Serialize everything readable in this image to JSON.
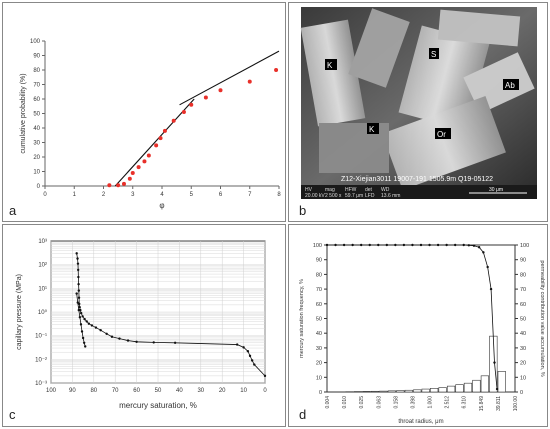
{
  "panel_letters": {
    "a": "a",
    "b": "b",
    "c": "c",
    "d": "d"
  },
  "sem_image": {
    "mineral_labels": [
      "K",
      "S",
      "Ab",
      "K",
      "Or"
    ],
    "caption_line": "Z12-Xiejian3011   19007-191   1505.9m   Q19-05122",
    "info_bar": [
      "HV",
      "mag",
      "HFW",
      "det",
      "WD",
      "20.00 kV",
      "2 500 x",
      "59.7 μm",
      "LFD",
      "13.6 mm"
    ],
    "scale_bar_label": "30 μm"
  },
  "chart_data": [
    {
      "panel": "a",
      "type": "scatter",
      "xlabel": "φ",
      "ylabel": "cumulative probability (%)",
      "xlim": [
        0,
        8
      ],
      "ylim": [
        0,
        100
      ],
      "x_ticks": [
        "0",
        "1",
        "2",
        "3",
        "4",
        "5",
        "6",
        "7",
        "8"
      ],
      "y_ticks": [
        "0",
        "10",
        "20",
        "30",
        "40",
        "50",
        "60",
        "70",
        "80",
        "90",
        "100"
      ],
      "points_color": "#e8302a",
      "series": [
        {
          "x": [
            2.2,
            2.5,
            2.7,
            2.9,
            3.0,
            3.2,
            3.4,
            3.55,
            3.8,
            3.95,
            4.1,
            4.4,
            4.75,
            5.0,
            5.5,
            6.0,
            7.0,
            7.9
          ],
          "y": [
            0.5,
            0.5,
            1.5,
            5,
            9,
            13,
            17,
            21,
            28,
            33,
            38,
            45,
            51,
            56,
            61,
            66,
            72,
            80
          ]
        }
      ],
      "fit_lines": [
        {
          "x": [
            2.4,
            5.1
          ],
          "y": [
            0,
            60
          ]
        },
        {
          "x": [
            4.6,
            8.0
          ],
          "y": [
            56,
            93
          ]
        }
      ]
    },
    {
      "panel": "c",
      "type": "line",
      "xlabel": "mercury saturation, %",
      "ylabel": "capillary pressure (MPa)",
      "x_reversed": true,
      "xlim": [
        100,
        0
      ],
      "y_scale": "log",
      "ylim": [
        0.001,
        1000
      ],
      "x_ticks": [
        "100",
        "90",
        "80",
        "70",
        "60",
        "50",
        "40",
        "30",
        "20",
        "10",
        "0"
      ],
      "y_ticks": [
        "10⁻³",
        "10⁻²",
        "10⁻¹",
        "10⁰",
        "10¹",
        "10²",
        "10³"
      ],
      "series": [
        {
          "x": [
            88,
            87.6,
            87.4,
            87.3,
            87.2,
            87.1,
            87,
            86.9,
            86.8,
            86.6,
            86.3,
            85.9,
            85.2,
            84.3,
            83.3,
            82.3,
            80.9,
            79,
            76.8,
            74,
            71.5,
            68,
            64,
            60,
            52,
            42,
            13,
            10,
            8,
            7,
            6,
            5,
            0
          ],
          "y": [
            300,
            180,
            110,
            60,
            30,
            15,
            8,
            4,
            2.2,
            1.6,
            1.2,
            0.9,
            0.65,
            0.5,
            0.4,
            0.32,
            0.27,
            0.22,
            0.17,
            0.12,
            0.09,
            0.075,
            0.062,
            0.055,
            0.052,
            0.05,
            0.042,
            0.032,
            0.022,
            0.014,
            0.009,
            0.006,
            0.002
          ]
        },
        {
          "x": [
            88,
            87.5,
            87,
            86.5,
            86,
            85.5,
            85,
            84.5,
            84
          ],
          "y": [
            6,
            2.5,
            1.2,
            0.6,
            0.3,
            0.15,
            0.08,
            0.05,
            0.035
          ]
        }
      ]
    },
    {
      "panel": "d",
      "type": "bar",
      "xlabel": "throat radius, μm",
      "ylabel_left": "mercury saturation frequency, %",
      "ylabel_right": "permeability contribution value accumulation, %",
      "ylim": [
        0,
        100
      ],
      "x_tick_labels": [
        "0.004",
        "0.010",
        "0.025",
        "0.063",
        "0.158",
        "0.398",
        "1.000",
        "2.512",
        "6.310",
        "15.849",
        "39.811",
        "100.00"
      ],
      "y_ticks_left": [
        "0",
        "10",
        "20",
        "30",
        "40",
        "50",
        "60",
        "70",
        "80",
        "90",
        "100"
      ],
      "y_ticks_right": [
        "0",
        "10",
        "20",
        "30",
        "40",
        "50",
        "60",
        "70",
        "80",
        "90",
        "100"
      ],
      "bars": [
        0.2,
        0.3,
        0.4,
        0.5,
        0.6,
        0.8,
        1.0,
        1.2,
        1.5,
        2.0,
        2.5,
        3.0,
        4.0,
        5.0,
        6.0,
        8.0,
        11.0,
        38.0,
        14.0
      ],
      "cumulative": [
        [
          0.0,
          100
        ],
        [
          0.5,
          100
        ],
        [
          1.0,
          100
        ],
        [
          1.5,
          100
        ],
        [
          2.0,
          100
        ],
        [
          2.5,
          100
        ],
        [
          3.0,
          100
        ],
        [
          3.5,
          100
        ],
        [
          4.0,
          100
        ],
        [
          4.5,
          100
        ],
        [
          5.0,
          100
        ],
        [
          5.5,
          100
        ],
        [
          6.0,
          100
        ],
        [
          6.5,
          100
        ],
        [
          7.0,
          100
        ],
        [
          7.5,
          100
        ],
        [
          8.0,
          100
        ],
        [
          8.3,
          99.8
        ],
        [
          8.6,
          99.5
        ],
        [
          8.9,
          98.5
        ],
        [
          9.15,
          95
        ],
        [
          9.4,
          85
        ],
        [
          9.6,
          70
        ],
        [
          9.8,
          20
        ],
        [
          9.95,
          2
        ]
      ]
    }
  ]
}
